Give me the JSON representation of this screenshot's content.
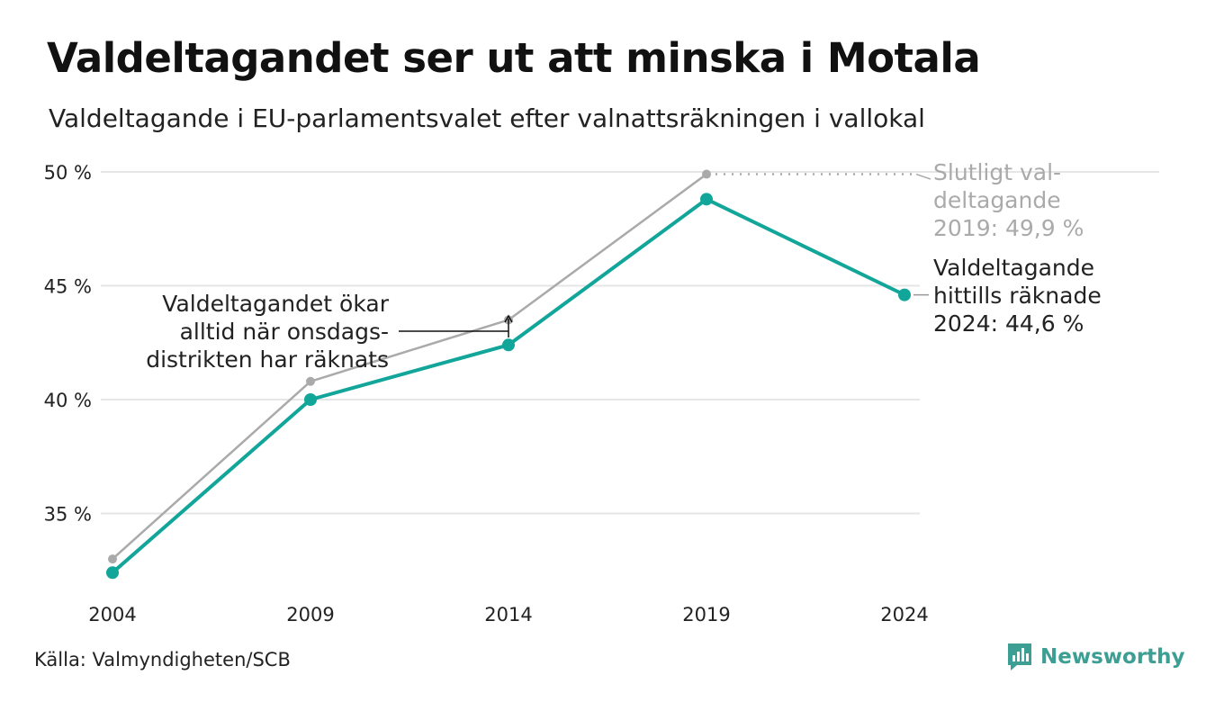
{
  "title": "Valdeltagandet ser ut att minska i Motala",
  "subtitle": "Valdeltagande i EU-parlamentsvalet efter valnattsräkningen i vallokal",
  "source": "Källa: Valmyndigheten/SCB",
  "brand": {
    "name": "Newsworthy",
    "icon": "newsworthy-logo-icon"
  },
  "colors": {
    "teal": "#12a59a",
    "gray": "#aaaaaa",
    "grid": "#e6e6e6",
    "text": "#222222"
  },
  "chart_data": {
    "type": "line",
    "categories": [
      "2004",
      "2009",
      "2014",
      "2019",
      "2024"
    ],
    "yticks": [
      "35 %",
      "40 %",
      "45 %",
      "50 %"
    ],
    "ylim": [
      31.5,
      50.5
    ],
    "grid": true,
    "series": [
      {
        "key": "final",
        "values": [
          33.0,
          40.8,
          43.5,
          49.9,
          null
        ]
      },
      {
        "key": "election_night",
        "values": [
          32.4,
          40.0,
          42.4,
          48.8,
          44.6
        ]
      }
    ],
    "annotations": {
      "final_2019": [
        "Slutligt val-",
        "deltagande",
        "2019: 49,9 %"
      ],
      "current_2024": [
        "Valdeltagande",
        "hittills räknade",
        "2024: 44,6 %"
      ],
      "wednesday": [
        "Valdeltagandet ökar",
        "alltid när onsdags-",
        "distrikten har räknats"
      ]
    }
  }
}
